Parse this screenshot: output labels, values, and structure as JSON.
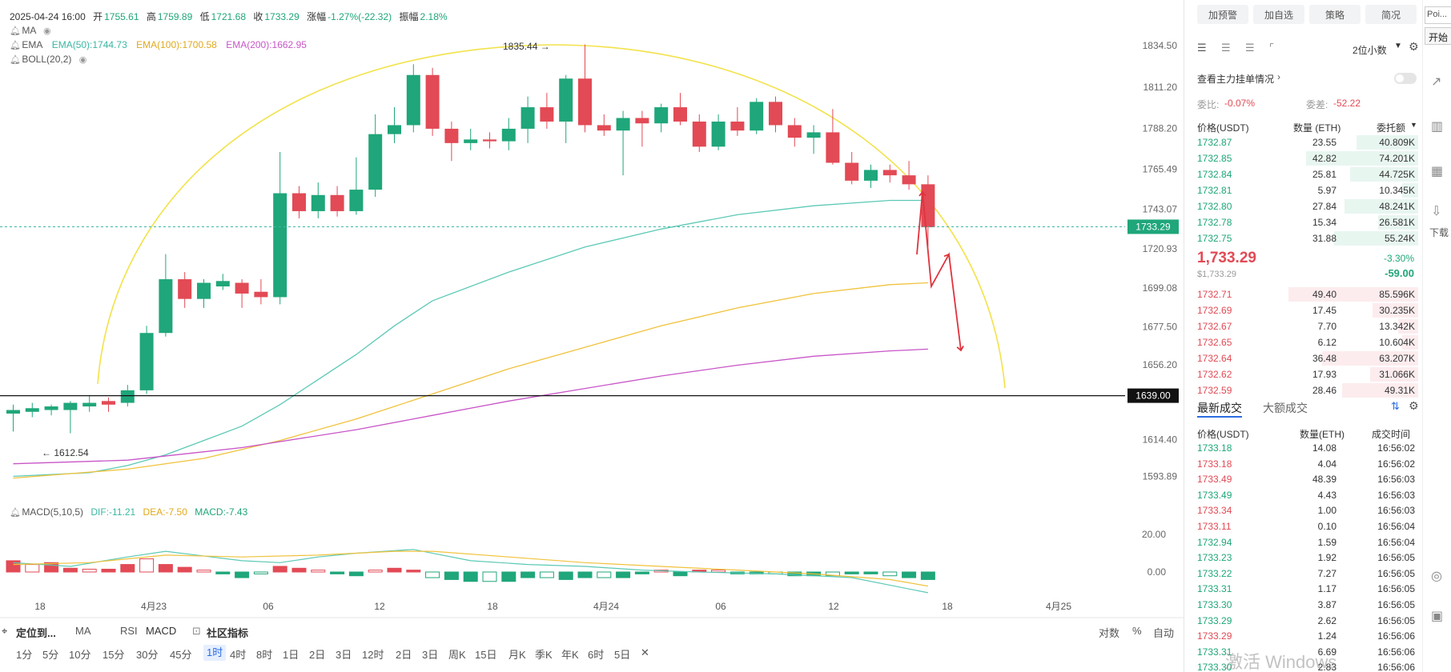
{
  "info": {
    "datetime": "2025-04-24 16:00",
    "open_label": "开",
    "open": "1755.61",
    "high_label": "高",
    "high": "1759.89",
    "low_label": "低",
    "low": "1721.68",
    "close_label": "收",
    "close": "1733.29",
    "change_label": "涨幅",
    "change": "-1.27%(-22.32)",
    "amp_label": "振幅",
    "amp": "2.18%"
  },
  "indicators": {
    "ma": "MA",
    "ema": "EMA",
    "ema50": "EMA(50):1744.73",
    "ema100": "EMA(100):1700.58",
    "ema200": "EMA(200):1662.95",
    "boll": "BOLL(20,2)",
    "macd": "MACD(5,10,5)",
    "dif": "DIF:-11.21",
    "dea": "DEA:-7.50",
    "macdv": "MACD:-7.43"
  },
  "colors": {
    "up": "#1fa67a",
    "down": "#e24a55",
    "ema50": "#5cc9b6",
    "ema100": "#f0c23c",
    "ema200": "#c855c7",
    "arc": "#f2e24a",
    "accent": "#2b6de1"
  },
  "chart_data": {
    "type": "candlestick",
    "y_ticks": [
      "1834.50",
      "1811.20",
      "1788.20",
      "1765.49",
      "1743.07",
      "1720.93",
      "1699.08",
      "1677.50",
      "1656.20",
      "1614.40",
      "1593.89"
    ],
    "ylim": [
      1583,
      1842
    ],
    "x_ticks": [
      "18",
      "4月23",
      "06",
      "12",
      "18",
      "4月24",
      "06",
      "12",
      "18",
      "4月25"
    ],
    "annot_high": "1835.44 →",
    "annot_low": "← 1612.54",
    "current_price": "1733.29",
    "support_level": "1639.00",
    "candles": [
      [
        1629,
        1631,
        1619,
        1634
      ],
      [
        1630,
        1632,
        1627,
        1635
      ],
      [
        1631,
        1633,
        1628,
        1634
      ],
      [
        1631,
        1635,
        1618,
        1636
      ],
      [
        1633,
        1635,
        1630,
        1639
      ],
      [
        1636,
        1634,
        1630,
        1638
      ],
      [
        1635,
        1642,
        1633,
        1645
      ],
      [
        1642,
        1674,
        1640,
        1678
      ],
      [
        1674,
        1704,
        1672,
        1718
      ],
      [
        1704,
        1693,
        1688,
        1708
      ],
      [
        1693,
        1702,
        1688,
        1704
      ],
      [
        1700,
        1703,
        1698,
        1707
      ],
      [
        1702,
        1696,
        1688,
        1704
      ],
      [
        1697,
        1694,
        1690,
        1704
      ],
      [
        1694,
        1752,
        1690,
        1775
      ],
      [
        1752,
        1742,
        1738,
        1756
      ],
      [
        1742,
        1751,
        1738,
        1758
      ],
      [
        1751,
        1742,
        1739,
        1756
      ],
      [
        1742,
        1754,
        1740,
        1772
      ],
      [
        1754,
        1785,
        1750,
        1796
      ],
      [
        1785,
        1790,
        1780,
        1800
      ],
      [
        1790,
        1818,
        1786,
        1824
      ],
      [
        1818,
        1788,
        1784,
        1822
      ],
      [
        1788,
        1780,
        1770,
        1792
      ],
      [
        1780,
        1782,
        1776,
        1788
      ],
      [
        1782,
        1781,
        1777,
        1786
      ],
      [
        1781,
        1788,
        1776,
        1794
      ],
      [
        1788,
        1800,
        1780,
        1806
      ],
      [
        1800,
        1792,
        1788,
        1808
      ],
      [
        1792,
        1816,
        1780,
        1818
      ],
      [
        1816,
        1790,
        1786,
        1835
      ],
      [
        1790,
        1787,
        1784,
        1796
      ],
      [
        1787,
        1794,
        1762,
        1798
      ],
      [
        1794,
        1791,
        1778,
        1798
      ],
      [
        1791,
        1800,
        1786,
        1802
      ],
      [
        1800,
        1792,
        1790,
        1808
      ],
      [
        1792,
        1778,
        1775,
        1796
      ],
      [
        1778,
        1792,
        1776,
        1796
      ],
      [
        1792,
        1787,
        1784,
        1800
      ],
      [
        1787,
        1803,
        1785,
        1805
      ],
      [
        1803,
        1790,
        1786,
        1806
      ],
      [
        1790,
        1783,
        1778,
        1794
      ],
      [
        1783,
        1786,
        1774,
        1790
      ],
      [
        1786,
        1769,
        1768,
        1799
      ],
      [
        1769,
        1759,
        1757,
        1775
      ],
      [
        1759,
        1765,
        1755,
        1768
      ],
      [
        1765,
        1762,
        1758,
        1768
      ],
      [
        1762,
        1757,
        1754,
        1770
      ],
      [
        1757,
        1733,
        1722,
        1762
      ]
    ],
    "macd_ticks": [
      "20.00",
      "0.00"
    ],
    "macd_hist": [
      6,
      4,
      5,
      2,
      1.5,
      1.5,
      4,
      7,
      4,
      2.5,
      1,
      -1,
      -3,
      -1,
      3,
      2,
      1,
      -1,
      -2,
      1,
      2,
      1,
      -3,
      -4,
      -5,
      -5,
      -5,
      -3,
      -3,
      -4,
      -3,
      -3,
      -3,
      -1,
      1,
      -2,
      1,
      1,
      -1,
      -1,
      -1,
      -2,
      -2,
      -2,
      -1,
      -1,
      -2,
      -3,
      -4
    ]
  },
  "toolbar": {
    "locate": "定位到...",
    "ma": "MA",
    "rsi": "RSI",
    "macd": "MACD",
    "community": "社区指标",
    "duishu": "对数",
    "pct": "%",
    "auto": "自动",
    "timeframes": [
      "1分",
      "5分",
      "10分",
      "15分",
      "30分",
      "45分",
      "1时",
      "4时",
      "8时",
      "1日",
      "2日",
      "3日",
      "12时",
      "2日",
      "3日",
      "周K",
      "15日",
      "月K",
      "季K",
      "年K",
      "6时",
      "5日",
      "✕"
    ],
    "active_tf": "1时"
  },
  "panel": {
    "buttons": [
      "加预警",
      "加自选",
      "策略",
      "简况"
    ],
    "decimals": "2位小数",
    "main_orders": "查看主力挂单情况",
    "weibi_label": "委比:",
    "weibi": "-0.07%",
    "weicha_label": "委差:",
    "weicha": "-52.22",
    "col_price": "价格(USDT)",
    "col_qty": "数量 (ETH)",
    "col_total": "委托额",
    "asks": [
      [
        "1732.87",
        "23.55",
        "40.809K",
        0.31
      ],
      [
        "1732.85",
        "42.82",
        "74.201K",
        0.56
      ],
      [
        "1732.84",
        "25.81",
        "44.725K",
        0.34
      ],
      [
        "1732.81",
        "5.97",
        "10.345K",
        0.08
      ],
      [
        "1732.80",
        "27.84",
        "48.241K",
        0.37
      ],
      [
        "1732.78",
        "15.34",
        "26.581K",
        0.2
      ],
      [
        "1732.75",
        "31.88",
        "55.24K",
        0.42
      ]
    ],
    "last_price": "1,733.29",
    "last_price_sub": "$1,733.29",
    "last_change_pct": "-3.30%",
    "last_change": "-59.00",
    "bids": [
      [
        "1732.71",
        "49.40",
        "85.596K",
        0.65
      ],
      [
        "1732.69",
        "17.45",
        "30.235K",
        0.23
      ],
      [
        "1732.67",
        "7.70",
        "13.342K",
        0.1
      ],
      [
        "1732.65",
        "6.12",
        "10.604K",
        0.08
      ],
      [
        "1732.64",
        "36.48",
        "63.207K",
        0.48
      ],
      [
        "1732.62",
        "17.93",
        "31.066K",
        0.24
      ],
      [
        "1732.59",
        "28.46",
        "49.31K",
        0.38
      ]
    ],
    "tab_trades": "最新成交",
    "tab_large": "大额成交",
    "tr_col_price": "价格(USDT)",
    "tr_col_qty": "数量(ETH)",
    "tr_col_time": "成交时间",
    "trades": [
      [
        "1733.18",
        "14.08",
        "16:56:02",
        "green"
      ],
      [
        "1733.18",
        "4.04",
        "16:56:02",
        "red"
      ],
      [
        "1733.49",
        "48.39",
        "16:56:03",
        "red"
      ],
      [
        "1733.49",
        "4.43",
        "16:56:03",
        "green"
      ],
      [
        "1733.34",
        "1.00",
        "16:56:03",
        "red"
      ],
      [
        "1733.11",
        "0.10",
        "16:56:04",
        "red"
      ],
      [
        "1732.94",
        "1.59",
        "16:56:04",
        "green"
      ],
      [
        "1733.23",
        "1.92",
        "16:56:05",
        "green"
      ],
      [
        "1733.22",
        "7.27",
        "16:56:05",
        "green"
      ],
      [
        "1733.31",
        "1.17",
        "16:56:05",
        "green"
      ],
      [
        "1733.30",
        "3.87",
        "16:56:05",
        "green"
      ],
      [
        "1733.29",
        "2.62",
        "16:56:05",
        "green"
      ],
      [
        "1733.29",
        "1.24",
        "16:56:06",
        "red"
      ],
      [
        "1733.31",
        "6.69",
        "16:56:06",
        "green"
      ],
      [
        "1733.30",
        "2.83",
        "16:56:06",
        "green"
      ]
    ]
  },
  "strip": {
    "poi": "Poi...",
    "start": "开始",
    "download": "下载"
  },
  "watermark": "激活 Windows"
}
